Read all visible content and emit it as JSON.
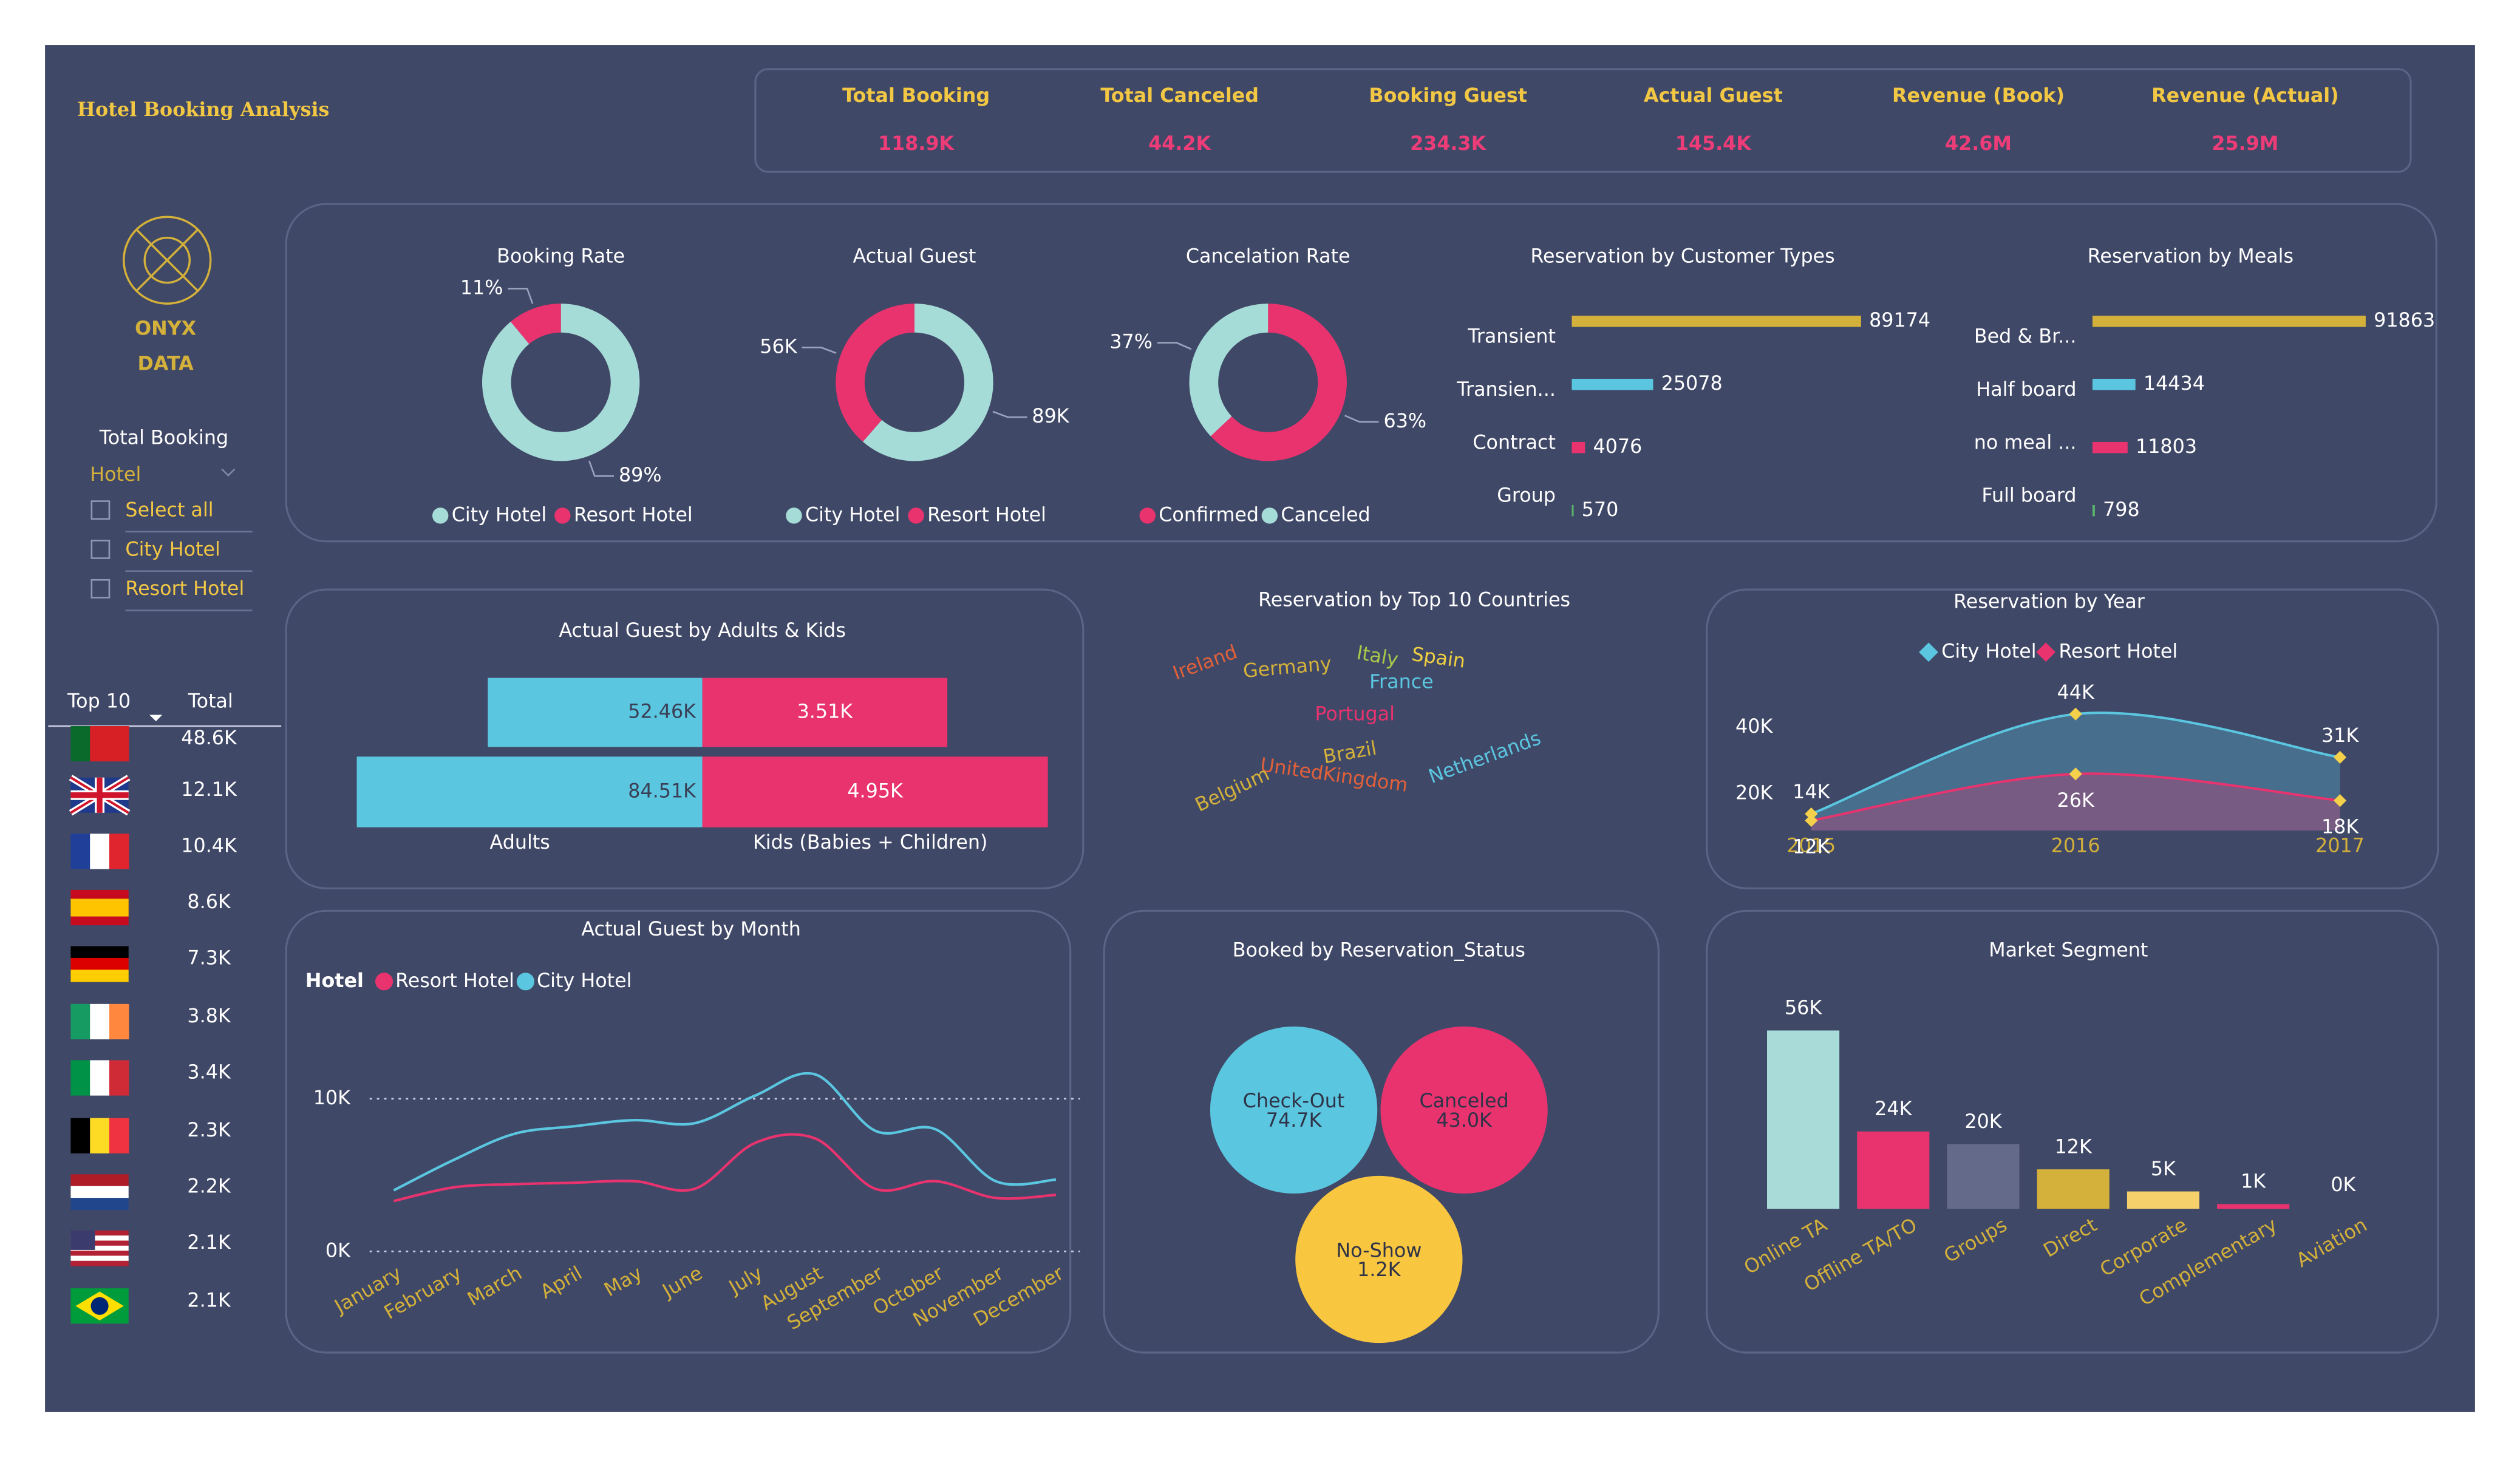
{
  "header": {
    "title": "Hotel Booking Analysis"
  },
  "kpis": [
    {
      "label": "Total Booking",
      "value": "118.9K"
    },
    {
      "label": "Total Canceled",
      "value": "44.2K"
    },
    {
      "label": "Booking Guest",
      "value": "234.3K"
    },
    {
      "label": "Actual Guest",
      "value": "145.4K"
    },
    {
      "label": "Revenue (Book)",
      "value": "42.6M"
    },
    {
      "label": "Revenue (Actual)",
      "value": "25.9M"
    }
  ],
  "logo": {
    "line1": "ONYX",
    "line2": "DATA"
  },
  "slicer": {
    "title": "Total Booking",
    "field": "Hotel",
    "options": [
      "Select all",
      "City Hotel",
      "Resort Hotel"
    ]
  },
  "top10": {
    "headers": [
      "Top 10",
      "Total"
    ],
    "rows": [
      "48.6K",
      "12.1K",
      "10.4K",
      "8.6K",
      "7.3K",
      "3.8K",
      "3.4K",
      "2.3K",
      "2.2K",
      "2.1K",
      "2.1K"
    ]
  },
  "chart_data": [
    {
      "type": "donut",
      "title": "Booking Rate",
      "categories": [
        "City Hotel",
        "Resort Hotel"
      ],
      "colors": [
        "#a6dcd8",
        "#e8336f"
      ],
      "values": [
        89,
        11
      ],
      "value_labels": [
        "89%",
        "11%"
      ]
    },
    {
      "type": "donut",
      "title": "Actual Guest",
      "categories": [
        "City Hotel",
        "Resort Hotel"
      ],
      "colors": [
        "#a6dcd8",
        "#e8336f"
      ],
      "values": [
        89000,
        56000
      ],
      "value_labels": [
        "89K",
        "56K"
      ]
    },
    {
      "type": "donut",
      "title": "Cancelation Rate",
      "categories": [
        "Confirmed",
        "Canceled"
      ],
      "colors": [
        "#e8336f",
        "#a6dcd8"
      ],
      "values": [
        63,
        37
      ],
      "value_labels": [
        "63%",
        "37%"
      ]
    },
    {
      "type": "hbar",
      "title": "Reservation by Customer Types",
      "categories": [
        "Transient",
        "Transien...",
        "Contract",
        "Group"
      ],
      "values": [
        89174,
        25078,
        4076,
        570
      ],
      "colors": [
        "#d4b13a",
        "#5bc6e0",
        "#e8336f",
        "#59b46a"
      ]
    },
    {
      "type": "hbar",
      "title": "Reservation by Meals",
      "categories": [
        "Bed & Br...",
        "Half board",
        "no meal ...",
        "Full board"
      ],
      "values": [
        91863,
        14434,
        11803,
        798
      ],
      "colors": [
        "#d4b13a",
        "#5bc6e0",
        "#e8336f",
        "#59b46a"
      ]
    },
    {
      "type": "diverging_bar",
      "title": "Actual Guest by Adults & Kids",
      "categories": [
        null,
        null
      ],
      "series": [
        {
          "name": "Adults",
          "color": "#5bc6e0",
          "values": [
            52460,
            84510
          ],
          "value_labels": [
            "52.46K",
            "84.51K"
          ]
        },
        {
          "name": "Kids (Babies + Children)",
          "color": "#e8336f",
          "values": [
            3510,
            4950
          ],
          "value_labels": [
            "3.51K",
            "4.95K"
          ]
        }
      ]
    },
    {
      "type": "wordcloud",
      "title": "Reservation by Top 10 Countries",
      "words": [
        "Portugal",
        "UnitedKingdom",
        "France",
        "Germany",
        "Spain",
        "Italy",
        "Ireland",
        "Belgium",
        "Brazil",
        "Netherlands"
      ]
    },
    {
      "type": "area",
      "title": "Reservation by Year",
      "categories": [
        "2015",
        "2016",
        "2017"
      ],
      "series": [
        {
          "name": "City Hotel",
          "color": "#5bc6e0",
          "values": [
            14000,
            44000,
            31000
          ],
          "value_labels": [
            "14K",
            "44K",
            "31K"
          ]
        },
        {
          "name": "Resort Hotel",
          "color": "#e8336f",
          "values": [
            12000,
            26000,
            18000
          ],
          "value_labels": [
            "12K",
            "26K",
            "18K"
          ]
        }
      ],
      "ylim": [
        9000,
        51000
      ],
      "yticks": [
        {
          "value": 20000,
          "label": "20K"
        },
        {
          "value": 40000,
          "label": "40K"
        }
      ]
    },
    {
      "type": "line",
      "title": "Actual Guest by Month",
      "legend_title": "Hotel",
      "categories": [
        "January",
        "February",
        "March",
        "April",
        "May",
        "June",
        "July",
        "August",
        "September",
        "October",
        "November",
        "December"
      ],
      "series": [
        {
          "name": "Resort Hotel",
          "color": "#e8336f",
          "values": [
            3300,
            4200,
            4400,
            4500,
            4600,
            4100,
            7100,
            7400,
            4100,
            4600,
            3500,
            3700
          ]
        },
        {
          "name": "City Hotel",
          "color": "#5bc6e0",
          "values": [
            4000,
            6000,
            7700,
            8200,
            8600,
            8400,
            10200,
            11600,
            7900,
            8000,
            4600,
            4700
          ]
        }
      ],
      "ylim": [
        0,
        14000
      ],
      "yticks": [
        {
          "value": 0,
          "label": "0K"
        },
        {
          "value": 10000,
          "label": "10K"
        }
      ],
      "grid": true
    },
    {
      "type": "bubble",
      "title": "Booked by Reservation_Status",
      "categories": [
        "Check-Out",
        "Canceled",
        "No-Show"
      ],
      "values": [
        74700,
        43000,
        1200
      ],
      "value_labels": [
        "74.7K",
        "43.0K",
        "1.2K"
      ],
      "colors": [
        "#5bc6e0",
        "#e8336f",
        "#f9c640"
      ]
    },
    {
      "type": "bar",
      "title": "Market Segment",
      "categories": [
        "Online TA",
        "Offline TA/TO",
        "Groups",
        "Direct",
        "Corporate",
        "Complementary",
        "Aviation"
      ],
      "values": [
        56000,
        24000,
        20000,
        12000,
        5000,
        1000,
        0
      ],
      "value_labels": [
        "56K",
        "24K",
        "20K",
        "12K",
        "5K",
        "1K",
        "0K"
      ],
      "colors": [
        "#a9dcd9",
        "#e8336f",
        "#646b8a",
        "#d4b13a",
        "#f5d06b",
        "#e8336f",
        "#8a90a8"
      ]
    }
  ]
}
